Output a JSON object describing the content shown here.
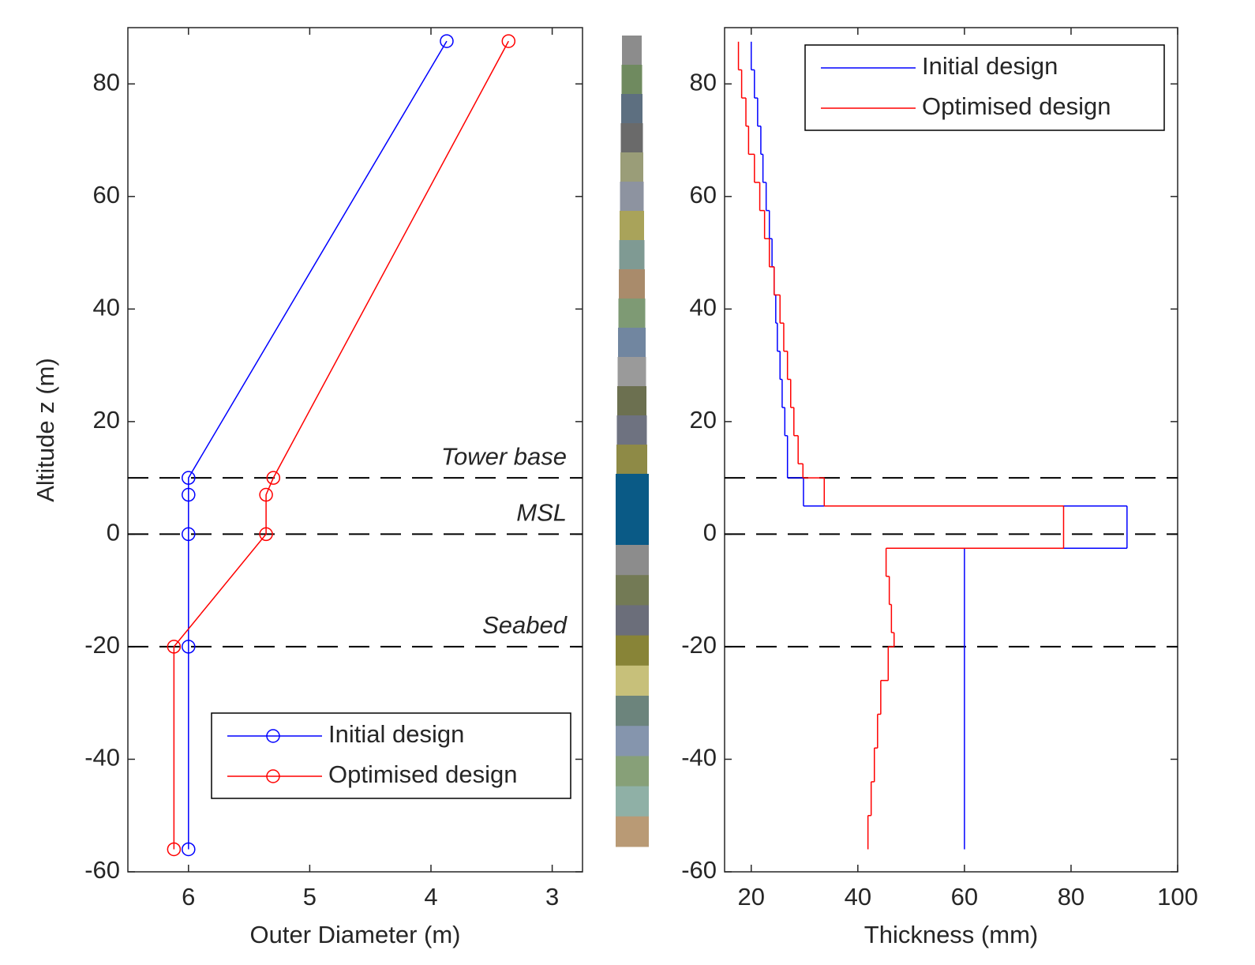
{
  "chart_data": [
    {
      "type": "line",
      "xlabel": "Outer Diameter (m)",
      "ylabel": "Altitude z (m)",
      "xlim": [
        6.5,
        2.75
      ],
      "xticks": [
        6,
        5,
        4,
        3
      ],
      "ylim": [
        -60,
        90
      ],
      "yticks": [
        -60,
        -40,
        -20,
        0,
        20,
        40,
        60,
        80
      ],
      "hlines": [
        {
          "y": 10,
          "label": "Tower base"
        },
        {
          "y": 0,
          "label": "MSL"
        },
        {
          "y": -20,
          "label": "Seabed"
        }
      ],
      "marker": "circle",
      "series": [
        {
          "name": "Initial design",
          "color": "#0000ff",
          "x": [
            6,
            6,
            6,
            6,
            6,
            3.87
          ],
          "y": [
            -56,
            -20,
            0,
            7,
            10,
            87.6
          ]
        },
        {
          "name": "Optimised design",
          "color": "#ff0000",
          "x": [
            6.12,
            6.12,
            5.36,
            5.36,
            5.3,
            3.36
          ],
          "y": [
            -56,
            -20,
            0,
            7,
            10,
            87.6
          ]
        }
      ]
    },
    {
      "type": "step",
      "xlabel": "Thickness (mm)",
      "xlim": [
        15,
        100
      ],
      "xticks": [
        20,
        40,
        60,
        80,
        100
      ],
      "ylim": [
        -60,
        90
      ],
      "yticks": [
        -60,
        -40,
        -20,
        0,
        20,
        40,
        60,
        80
      ],
      "hlines": [
        {
          "y": 10
        },
        {
          "y": 0
        },
        {
          "y": -20
        }
      ],
      "series": [
        {
          "name": "Initial design",
          "color": "#0000ff",
          "values": [
            20.0,
            20.6,
            21.2,
            21.8,
            22.2,
            22.8,
            23.4,
            23.9,
            24.3,
            24.6,
            24.9,
            25.4,
            25.8,
            26.3,
            26.8,
            29.8,
            90.5,
            60
          ],
          "edges": [
            87.5,
            82.5,
            77.5,
            72.5,
            67.5,
            62.5,
            57.5,
            52.5,
            47.5,
            42.5,
            37.5,
            32.5,
            27.5,
            22.5,
            17.5,
            10,
            5,
            -2.5,
            -56
          ]
        },
        {
          "name": "Optimised design",
          "color": "#ff0000",
          "values": [
            17.6,
            18.2,
            19.0,
            19.5,
            20.6,
            21.6,
            22.5,
            23.4,
            24.3,
            25.4,
            26.1,
            26.8,
            27.4,
            28.0,
            28.8,
            29.7,
            33.7,
            78.6,
            45.3,
            45.9,
            46.3,
            46.8,
            45.7,
            44.3,
            43.7,
            43.1,
            42.5,
            41.9
          ],
          "edges": [
            87.5,
            82.5,
            77.5,
            72.5,
            67.5,
            62.5,
            57.5,
            52.5,
            47.5,
            42.5,
            37.5,
            32.5,
            27.5,
            22.5,
            17.5,
            12.5,
            10,
            5,
            -2.5,
            -7.5,
            -12.5,
            -17.5,
            -20,
            -26,
            -32,
            -38,
            -44,
            -50,
            -56
          ]
        }
      ]
    }
  ]
}
